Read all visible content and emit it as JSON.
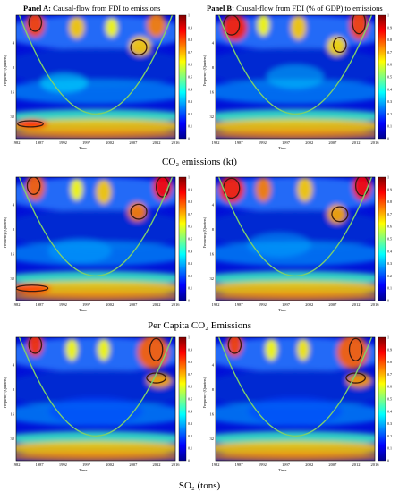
{
  "panels": {
    "a": {
      "bold": "Panel A:",
      "text": " Causal-flow from FDI to emissions"
    },
    "b": {
      "bold": "Panel B:",
      "text": " Causal-flow from FDI (% of GDP) to emissions"
    }
  },
  "rows": [
    {
      "title": "CO₂ emissions (kt)"
    },
    {
      "title": "Per Capita CO₂ Emissions"
    },
    {
      "title": "SO₂ (tons)"
    }
  ],
  "axes": {
    "ylabel": "Frequency (Quarters)",
    "xlabel": "Time",
    "yticks": [
      "4",
      "8",
      "16",
      "32"
    ],
    "xticks": [
      "1982",
      "1987",
      "1992",
      "1997",
      "2002",
      "2007",
      "2012",
      "2016"
    ],
    "colorbar_ticks": [
      "0",
      "0.1",
      "0.2",
      "0.3",
      "0.4",
      "0.5",
      "0.6",
      "0.7",
      "0.8",
      "0.9",
      "1"
    ]
  },
  "colors": {
    "cone": "#7fd06a",
    "contour": "#3a1a10",
    "colormap": [
      "#00008f",
      "#0000ff",
      "#0080ff",
      "#00ffff",
      "#80ff80",
      "#ffff00",
      "#ff8000",
      "#ff0000",
      "#800000"
    ]
  },
  "chart_data": [
    {
      "type": "heatmap",
      "name": "wavelet coherence",
      "row": 1,
      "panel": "a",
      "x_range": [
        1982,
        2016
      ],
      "y_range_quarters": [
        2,
        48
      ],
      "z_range": [
        0,
        1
      ]
    },
    {
      "type": "heatmap",
      "name": "wavelet coherence",
      "row": 1,
      "panel": "b",
      "x_range": [
        1982,
        2016
      ],
      "y_range_quarters": [
        2,
        48
      ],
      "z_range": [
        0,
        1
      ]
    },
    {
      "type": "heatmap",
      "name": "wavelet coherence",
      "row": 2,
      "panel": "a",
      "x_range": [
        1982,
        2016
      ],
      "y_range_quarters": [
        2,
        48
      ],
      "z_range": [
        0,
        1
      ]
    },
    {
      "type": "heatmap",
      "name": "wavelet coherence",
      "row": 2,
      "panel": "b",
      "x_range": [
        1982,
        2016
      ],
      "y_range_quarters": [
        2,
        48
      ],
      "z_range": [
        0,
        1
      ]
    },
    {
      "type": "heatmap",
      "name": "wavelet coherence",
      "row": 3,
      "panel": "a",
      "x_range": [
        1982,
        2016
      ],
      "y_range_quarters": [
        2,
        48
      ],
      "z_range": [
        0,
        1
      ]
    },
    {
      "type": "heatmap",
      "name": "wavelet coherence",
      "row": 3,
      "panel": "b",
      "x_range": [
        1982,
        2016
      ],
      "y_range_quarters": [
        2,
        48
      ],
      "z_range": [
        0,
        1
      ]
    }
  ]
}
